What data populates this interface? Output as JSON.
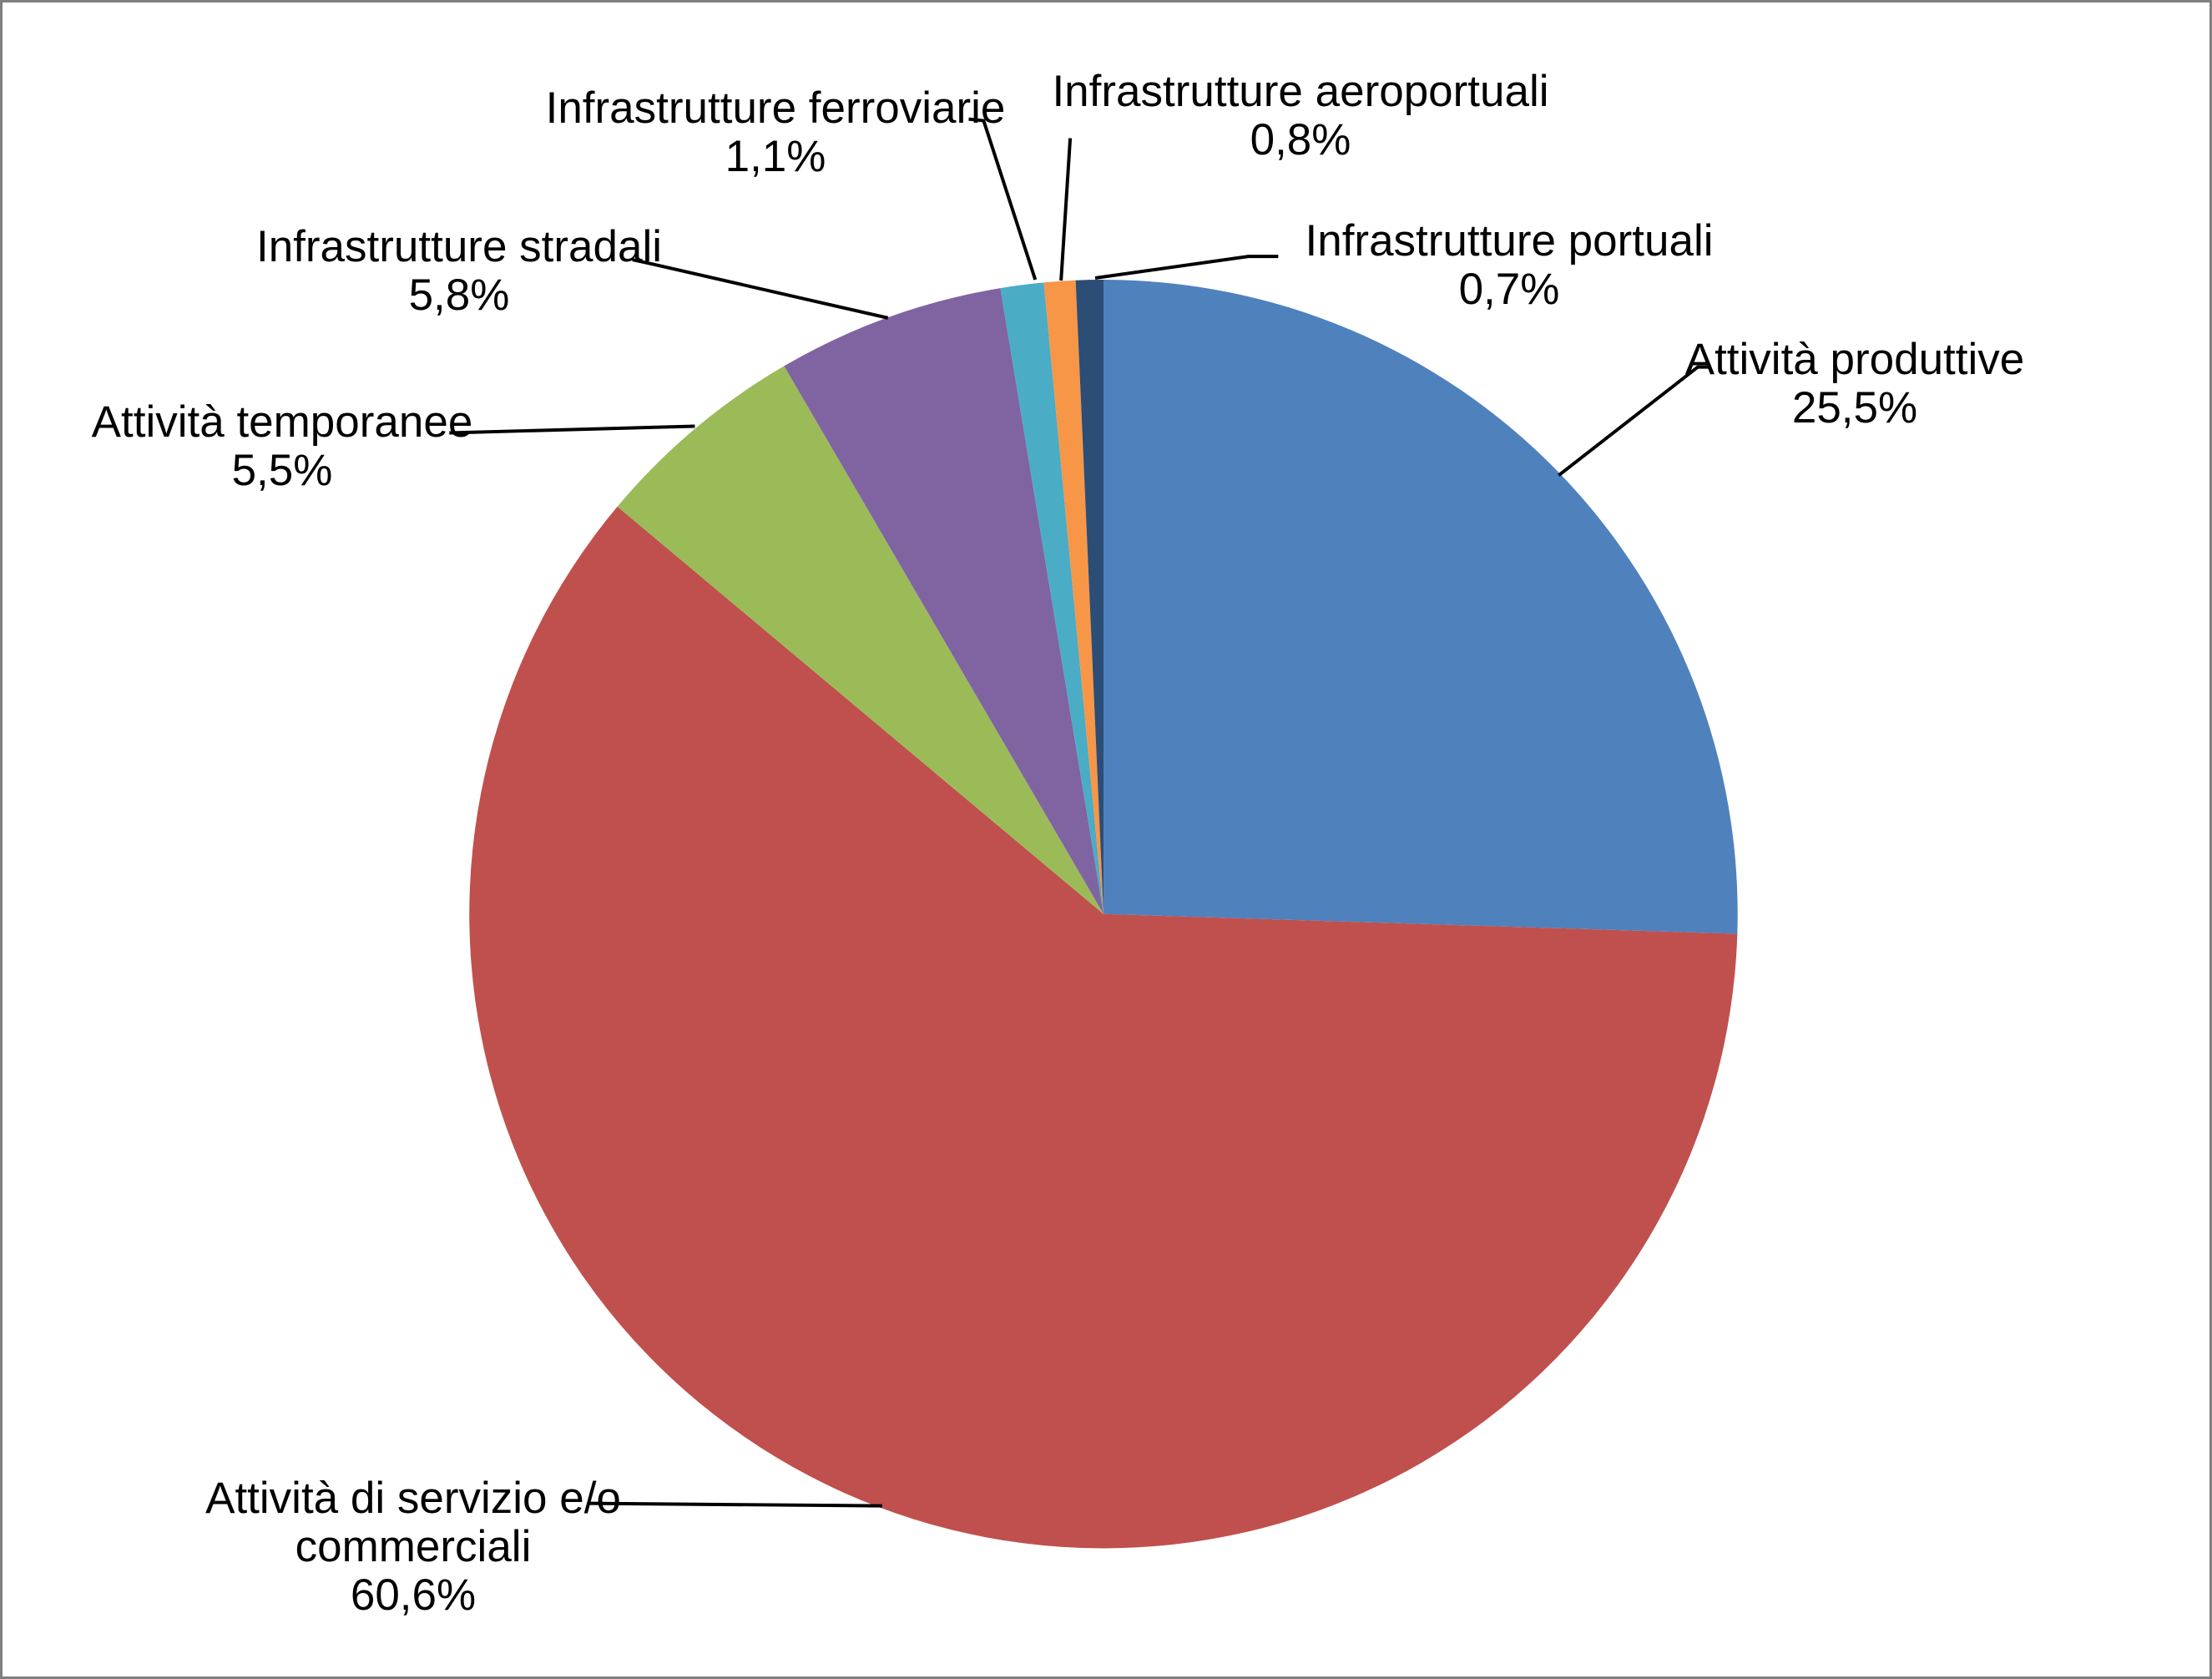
{
  "chart_data": {
    "type": "pie",
    "title": "",
    "legend": "none",
    "unit": "%",
    "decimal_separator": ",",
    "direction": "clockwise",
    "start_angle_deg": 0,
    "labels_outside_with_leader_lines": true,
    "background_color": "#FFFFFF",
    "frame_border_color": "#7F7F7F",
    "leader_line_color": "#000000",
    "slices": [
      {
        "label": "Attività produttive",
        "label_lines": [
          "Attività produttive"
        ],
        "value": 25.5,
        "value_label": "25,5%",
        "color": "#4F81BD"
      },
      {
        "label": "Attività di servizio e/o commerciali",
        "label_lines": [
          "Attività di servizio e/o",
          "commerciali"
        ],
        "value": 60.6,
        "value_label": "60,6%",
        "color": "#C0504D"
      },
      {
        "label": "Attività temporanee",
        "label_lines": [
          "Attività temporanee"
        ],
        "value": 5.5,
        "value_label": "5,5%",
        "color": "#9BBB59"
      },
      {
        "label": "Infrastrutture stradali",
        "label_lines": [
          "Infrastrutture stradali"
        ],
        "value": 5.8,
        "value_label": "5,8%",
        "color": "#8064A2"
      },
      {
        "label": "Infrastrutture ferroviarie",
        "label_lines": [
          "Infrastrutture ferroviarie"
        ],
        "value": 1.1,
        "value_label": "1,1%",
        "color": "#4BACC6"
      },
      {
        "label": "Infrastrutture aeroportuali",
        "label_lines": [
          "Infrastrutture aeroportuali"
        ],
        "value": 0.8,
        "value_label": "0,8%",
        "color": "#F79646"
      },
      {
        "label": "Infrastrutture portuali",
        "label_lines": [
          "Infrastrutture portuali"
        ],
        "value": 0.7,
        "value_label": "0,7%",
        "color": "#2C4D75"
      }
    ]
  }
}
